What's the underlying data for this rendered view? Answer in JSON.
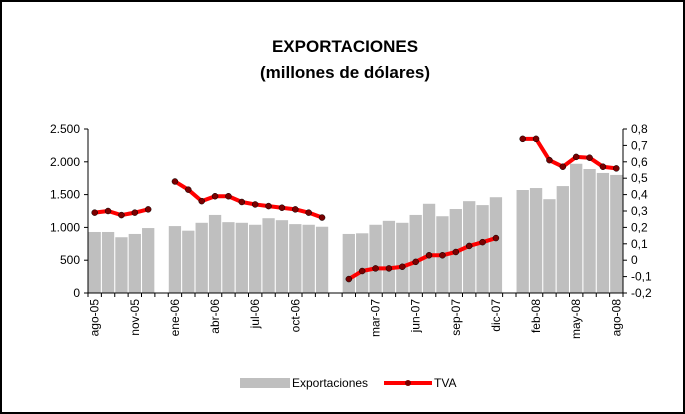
{
  "chart_data": {
    "type": "bar_line",
    "title": "EXPORTACIONES",
    "subtitle": "(millones de dólares)",
    "categories": [
      "ago-05",
      null,
      null,
      "nov-05",
      null,
      null,
      "ene-06",
      null,
      null,
      "abr-06",
      null,
      null,
      "jul-06",
      null,
      null,
      "oct-06",
      null,
      null,
      null,
      null,
      null,
      "mar-07",
      null,
      null,
      "jun-07",
      null,
      null,
      "sep-07",
      null,
      null,
      "dic-07",
      null,
      null,
      "feb-08",
      null,
      null,
      "may-08",
      null,
      null,
      "ago-08"
    ],
    "series": [
      {
        "name": "Exportaciones",
        "color": "#bfbfbf",
        "values": [
          930,
          930,
          850,
          900,
          990,
          null,
          1020,
          950,
          1070,
          1190,
          1080,
          1070,
          1040,
          1140,
          1110,
          1050,
          1040,
          1010,
          null,
          900,
          910,
          1040,
          1100,
          1070,
          1190,
          1360,
          1170,
          1280,
          1400,
          1340,
          1460,
          null,
          1570,
          1600,
          1430,
          1630,
          1970,
          1890,
          1830,
          1800
        ]
      },
      {
        "name": "TVA",
        "color": "#ff0000",
        "marker_color": "#7a0000",
        "axis": "y2",
        "values": [
          0.29,
          0.3,
          0.275,
          0.29,
          0.31,
          null,
          0.48,
          0.43,
          0.36,
          0.39,
          0.39,
          0.355,
          0.34,
          0.33,
          0.32,
          0.31,
          0.29,
          0.26,
          null,
          -0.115,
          -0.066,
          -0.05,
          -0.05,
          -0.04,
          -0.01,
          0.03,
          0.03,
          0.05,
          0.087,
          0.11,
          0.135,
          null,
          0.74,
          0.74,
          0.61,
          0.57,
          0.63,
          0.625,
          0.57,
          0.56
        ]
      }
    ],
    "ylim": [
      0,
      2500
    ],
    "yticks": [
      0,
      500,
      {
        "value": 1000,
        "label": "1.000"
      },
      {
        "value": 1500,
        "label": "1.500"
      },
      {
        "value": 2000,
        "label": "2.000"
      },
      {
        "value": 2500,
        "label": "2.500"
      }
    ],
    "y2lim": [
      -0.2,
      0.8
    ],
    "y2ticks": [
      {
        "value": -0.2,
        "label": "-0,2"
      },
      {
        "value": -0.1,
        "label": "-0,1"
      },
      0,
      {
        "value": 0.1,
        "label": "0,1"
      },
      {
        "value": 0.2,
        "label": "0,2"
      },
      {
        "value": 0.3,
        "label": "0,3"
      },
      {
        "value": 0.4,
        "label": "0,4"
      },
      {
        "value": 0.5,
        "label": "0,5"
      },
      {
        "value": 0.6,
        "label": "0,6"
      },
      {
        "value": 0.7,
        "label": "0,7"
      },
      {
        "value": 0.8,
        "label": "0,8"
      }
    ],
    "legend": "bottom"
  }
}
